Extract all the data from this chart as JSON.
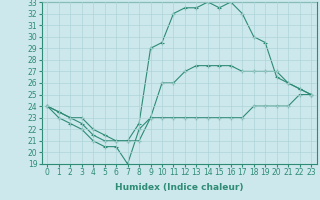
{
  "xlabel": "Humidex (Indice chaleur)",
  "x": [
    0,
    1,
    2,
    3,
    4,
    5,
    6,
    7,
    8,
    9,
    10,
    11,
    12,
    13,
    14,
    15,
    16,
    17,
    18,
    19,
    20,
    21,
    22,
    23
  ],
  "y_min": [
    24,
    23,
    22.5,
    22,
    21,
    20.5,
    20.5,
    19,
    22,
    23,
    23,
    23,
    23,
    23,
    23,
    23,
    23,
    23,
    24,
    24,
    24,
    24,
    25,
    25
  ],
  "y_mean": [
    24,
    23.5,
    23,
    23,
    22,
    21.5,
    21,
    21,
    21,
    23,
    26,
    26,
    27,
    27.5,
    27.5,
    27.5,
    27.5,
    27,
    27,
    27,
    27,
    26,
    25.5,
    25
  ],
  "y_max": [
    24,
    23.5,
    23,
    22.5,
    21.5,
    21,
    21,
    21,
    22.5,
    29,
    29.5,
    32,
    32.5,
    32.5,
    33,
    32.5,
    33,
    32,
    30,
    29.5,
    26.5,
    26,
    25.5,
    25
  ],
  "line_color": "#2e8b74",
  "bg_color": "#cce8ec",
  "grid_color": "#aed4d8",
  "ylim": [
    19,
    33
  ],
  "yticks": [
    19,
    20,
    21,
    22,
    23,
    24,
    25,
    26,
    27,
    28,
    29,
    30,
    31,
    32,
    33
  ],
  "xticks": [
    0,
    1,
    2,
    3,
    4,
    5,
    6,
    7,
    8,
    9,
    10,
    11,
    12,
    13,
    14,
    15,
    16,
    17,
    18,
    19,
    20,
    21,
    22,
    23
  ],
  "tick_fontsize": 5.5,
  "xlabel_fontsize": 6.5
}
